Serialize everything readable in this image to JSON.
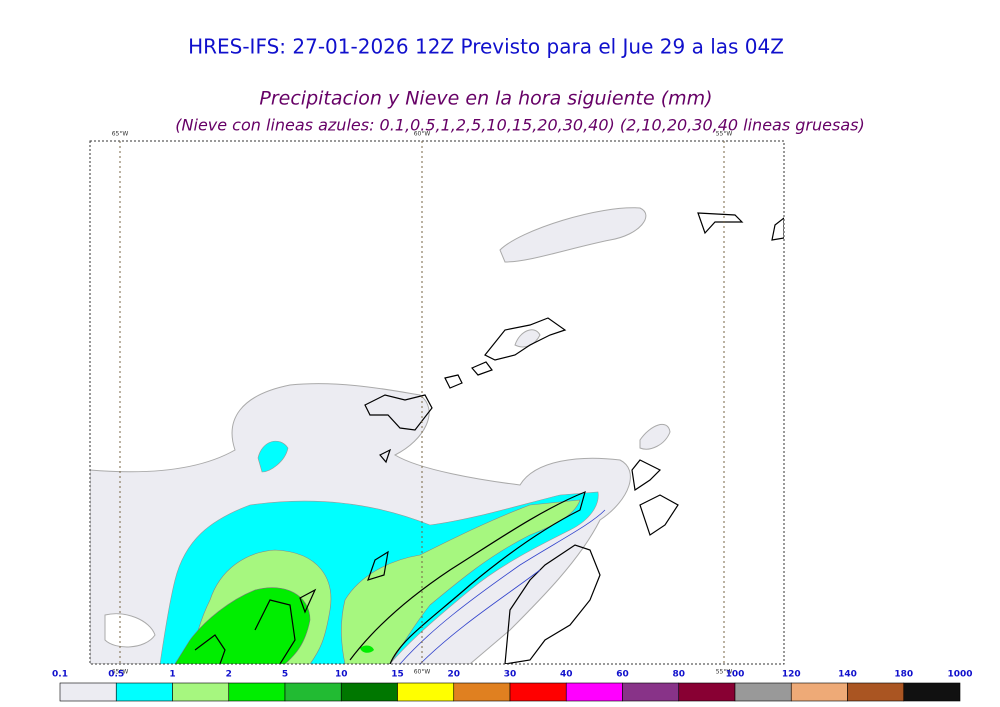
{
  "header": {
    "title": "HRES-IFS: 27-01-2026 12Z Previsto para el Jue 29 a las 04Z",
    "subtitle": "Precipitacion y Nieve en la hora siguiente (mm)",
    "note": "(Nieve con lineas azules: 0.1,0.5,1,2,5,10,15,20,30,40)  (2,10,20,30,40 lineas gruesas)"
  },
  "map": {
    "meridians": [
      "65°W",
      "60°W",
      "55°W"
    ]
  },
  "legend": {
    "labels": [
      "0.1",
      "0.5",
      "1",
      "2",
      "5",
      "10",
      "15",
      "20",
      "30",
      "40",
      "60",
      "80",
      "100",
      "120",
      "140",
      "180",
      "1000"
    ],
    "colors": [
      "#ececf2",
      "#00ffff",
      "#a6f77f",
      "#00ee00",
      "#22bb33",
      "#007700",
      "#ffff00",
      "#e08020",
      "#ff0000",
      "#ff00ff",
      "#883388",
      "#880033",
      "#999999",
      "#eeaa77",
      "#aa5522",
      "#111111"
    ]
  }
}
